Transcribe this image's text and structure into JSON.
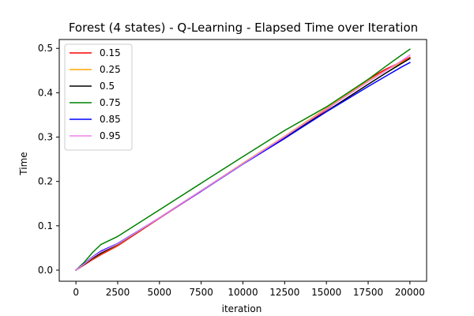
{
  "chart_data": {
    "type": "line",
    "title": "Forest (4 states) - Q-Learning - Elapsed Time over Iteration",
    "xlabel": "iteration",
    "ylabel": "Time",
    "xlim": [
      -1000,
      21000
    ],
    "ylim": [
      -0.025,
      0.52
    ],
    "x_ticks": [
      0,
      2500,
      5000,
      7500,
      10000,
      12500,
      15000,
      17500,
      20000
    ],
    "x_tick_labels": [
      "0",
      "2500",
      "5000",
      "7500",
      "10000",
      "12500",
      "15000",
      "17500",
      "20000"
    ],
    "y_ticks": [
      0.0,
      0.1,
      0.2,
      0.3,
      0.4,
      0.5
    ],
    "y_tick_labels": [
      "0.0",
      "0.1",
      "0.2",
      "0.3",
      "0.4",
      "0.5"
    ],
    "grid": false,
    "legend_position": "upper-left",
    "x": [
      0,
      500,
      1000,
      1500,
      2500,
      5000,
      7500,
      10000,
      12500,
      15000,
      17500,
      18500,
      19500,
      20000
    ],
    "series": [
      {
        "name": "0.15",
        "color": "#ff0000",
        "values": [
          0,
          0.012,
          0.024,
          0.035,
          0.055,
          0.117,
          0.178,
          0.24,
          0.297,
          0.362,
          0.43,
          0.452,
          0.47,
          0.48
        ]
      },
      {
        "name": "0.25",
        "color": "#ffa500",
        "values": [
          0,
          0.013,
          0.026,
          0.037,
          0.057,
          0.118,
          0.179,
          0.241,
          0.302,
          0.365,
          0.427,
          0.449,
          0.468,
          0.478
        ]
      },
      {
        "name": "0.5",
        "color": "#000000",
        "values": [
          0,
          0.013,
          0.027,
          0.038,
          0.058,
          0.118,
          0.179,
          0.24,
          0.3,
          0.358,
          0.419,
          0.443,
          0.466,
          0.477
        ]
      },
      {
        "name": "0.75",
        "color": "#008000",
        "values": [
          0,
          0.018,
          0.04,
          0.058,
          0.076,
          0.136,
          0.196,
          0.256,
          0.315,
          0.368,
          0.43,
          0.458,
          0.485,
          0.498
        ]
      },
      {
        "name": "0.85",
        "color": "#0000ff",
        "values": [
          0,
          0.015,
          0.03,
          0.043,
          0.06,
          0.118,
          0.178,
          0.239,
          0.297,
          0.357,
          0.414,
          0.436,
          0.458,
          0.468
        ]
      },
      {
        "name": "0.95",
        "color": "#ee82ee",
        "values": [
          0,
          0.014,
          0.029,
          0.041,
          0.059,
          0.118,
          0.179,
          0.24,
          0.301,
          0.363,
          0.425,
          0.448,
          0.472,
          0.485
        ]
      }
    ]
  }
}
